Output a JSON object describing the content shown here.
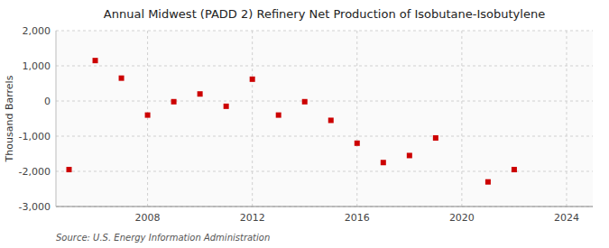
{
  "chart_data": {
    "type": "scatter",
    "title": "Annual Midwest (PADD 2) Refinery Net Production of Isobutane-Isobutylene",
    "ylabel": "Thousand Barrels",
    "source": "Source: U.S. Energy Information Administration",
    "x": [
      2005,
      2006,
      2007,
      2008,
      2009,
      2010,
      2011,
      2012,
      2013,
      2014,
      2015,
      2016,
      2017,
      2018,
      2019,
      2021,
      2022
    ],
    "values": [
      -1950,
      1150,
      650,
      -400,
      -20,
      200,
      -150,
      620,
      -400,
      -20,
      -550,
      -1200,
      -1750,
      -1550,
      -1050,
      -2300,
      -1950
    ],
    "color": "#cc0000",
    "marker": "square",
    "xlim": [
      2004.5,
      2025
    ],
    "xticks": [
      2008,
      2012,
      2016,
      2020,
      2024
    ],
    "ylim": [
      -3000,
      2000
    ],
    "yticks": [
      {
        "value": -3000,
        "label": "-3,000"
      },
      {
        "value": -2000,
        "label": "-2,000"
      },
      {
        "value": -1000,
        "label": "-1,000"
      },
      0,
      {
        "value": 1000,
        "label": "1,000"
      },
      {
        "value": 2000,
        "label": "2,000"
      }
    ],
    "grid": true
  }
}
